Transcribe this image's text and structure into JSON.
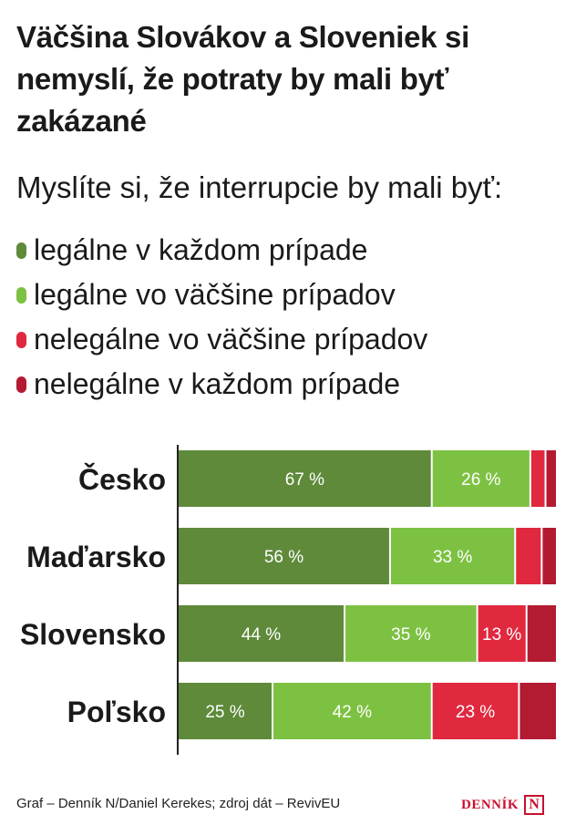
{
  "title": "Väčšina Slovákov a Sloveniek si nemyslí, že potraty by mali byť zakázané",
  "subtitle": "Myslíte si, že interrupcie by mali byť:",
  "legend": [
    {
      "label": "legálne v každom prípade",
      "color": "#5e8a3a"
    },
    {
      "label": "legálne vo väčšine prípadov",
      "color": "#7dc142"
    },
    {
      "label": "nelegálne vo väčšine prípadov",
      "color": "#e0283f"
    },
    {
      "label": "nelegálne v každom prípade",
      "color": "#b31b32"
    }
  ],
  "chart_data": {
    "type": "bar",
    "orientation": "horizontal",
    "stacked": true,
    "categories": [
      "Česko",
      "Maďarsko",
      "Slovensko",
      "Poľsko"
    ],
    "series": [
      {
        "name": "legálne v každom prípade",
        "color": "#5e8a3a",
        "values": [
          67,
          56,
          44,
          25
        ],
        "labels": [
          "67 %",
          "56 %",
          "44 %",
          "25 %"
        ]
      },
      {
        "name": "legálne vo väčšine prípadov",
        "color": "#7dc142",
        "values": [
          26,
          33,
          35,
          42
        ],
        "labels": [
          "26 %",
          "33 %",
          "35 %",
          "42 %"
        ]
      },
      {
        "name": "nelegálne vo väčšine prípadov",
        "color": "#e0283f",
        "values": [
          4,
          7,
          13,
          23
        ],
        "labels": [
          "",
          "",
          "13 %",
          "23 %"
        ]
      },
      {
        "name": "nelegálne v každom prípade",
        "color": "#b31b32",
        "values": [
          3,
          4,
          8,
          10
        ],
        "labels": [
          "",
          "",
          "",
          ""
        ]
      }
    ],
    "xlim": [
      0,
      100
    ]
  },
  "footer": "Graf – Denník N/Daniel Kerekes; zdroj dát – RevivEU",
  "logo": {
    "text": "DENNÍK",
    "mark": "N"
  }
}
